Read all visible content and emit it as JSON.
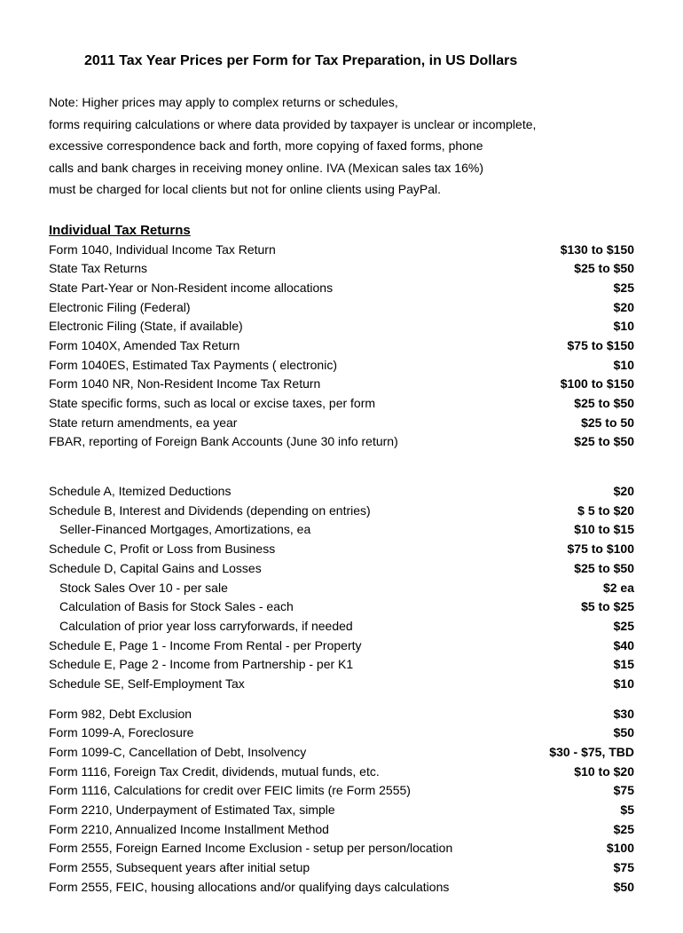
{
  "title": "2011 Tax Year Prices per Form for Tax Preparation, in US Dollars",
  "note_lines": [
    "Note:  Higher prices may apply to complex returns or schedules,",
    "forms requiring calculations or where data provided by taxpayer is unclear or incomplete,",
    "excessive correspondence back and forth, more copying of faxed forms, phone",
    "calls and bank charges in receiving money online. IVA (Mexican sales tax 16%)",
    "must be charged for local clients but not for online clients using PayPal."
  ],
  "section1_header": "Individual Tax Returns",
  "group1": [
    {
      "label": "Form 1040, Individual Income Tax Return",
      "price": "$130 to $150"
    },
    {
      "label": "State Tax Returns",
      "price": "$25 to $50"
    },
    {
      "label": "State Part-Year or Non-Resident income allocations",
      "price": "$25"
    },
    {
      "label": "Electronic Filing (Federal)",
      "price": "$20"
    },
    {
      "label": "Electronic Filing (State, if available)",
      "price": "$10"
    },
    {
      "label": "Form 1040X, Amended Tax Return",
      "price": "$75 to $150"
    },
    {
      "label": "Form 1040ES, Estimated Tax Payments ( electronic)",
      "price": "$10"
    },
    {
      "label": "Form 1040 NR, Non-Resident Income Tax Return",
      "price": "$100 to $150"
    },
    {
      "label": "State specific forms, such as local or excise taxes, per form",
      "price": "$25 to $50"
    },
    {
      "label": "State return amendments, ea year",
      "price": "$25 to 50"
    },
    {
      "label": "FBAR, reporting of Foreign Bank Accounts (June 30 info return)",
      "price": "$25 to $50"
    }
  ],
  "group2": [
    {
      "label": "Schedule A, Itemized Deductions",
      "price": "$20",
      "indent": false
    },
    {
      "label": "Schedule B, Interest and Dividends (depending on entries)",
      "price": "$ 5 to $20",
      "indent": false
    },
    {
      "label": "Seller-Financed Mortgages, Amortizations, ea",
      "price": "$10 to $15",
      "indent": true
    },
    {
      "label": "Schedule C, Profit or Loss from Business",
      "price": "$75 to $100",
      "indent": false
    },
    {
      "label": "Schedule D, Capital Gains and Losses",
      "price": "$25 to $50",
      "indent": false
    },
    {
      "label": "Stock Sales Over 10 - per sale",
      "price": "$2 ea",
      "indent": true
    },
    {
      "label": "Calculation of Basis for Stock Sales - each",
      "price": "$5 to $25",
      "indent": true
    },
    {
      "label": "Calculation of prior year loss carryforwards, if needed",
      "price": "$25",
      "indent": true
    },
    {
      "label": "Schedule E, Page 1 - Income From Rental - per Property",
      "price": "$40",
      "indent": false
    },
    {
      "label": "Schedule E, Page 2 - Income from Partnership - per K1",
      "price": "$15",
      "indent": false
    },
    {
      "label": "Schedule SE, Self-Employment Tax",
      "price": "$10",
      "indent": false
    }
  ],
  "group3": [
    {
      "label": "Form 982, Debt Exclusion",
      "price": "$30"
    },
    {
      "label": "Form 1099-A, Foreclosure",
      "price": "$50"
    },
    {
      "label": "Form 1099-C, Cancellation of Debt, Insolvency",
      "price": "$30 - $75, TBD"
    },
    {
      "label": "Form 1116, Foreign Tax Credit, dividends, mutual funds, etc.",
      "price": "$10 to $20"
    },
    {
      "label": "Form 1116, Calculations for credit over FEIC limits (re Form 2555)",
      "price": "$75"
    },
    {
      "label": "Form 2210, Underpayment of Estimated Tax, simple",
      "price": "$5"
    },
    {
      "label": "Form 2210, Annualized Income Installment Method",
      "price": "$25"
    },
    {
      "label": "Form 2555, Foreign Earned Income Exclusion - setup per person/location",
      "price": "$100"
    },
    {
      "label": "Form 2555, Subsequent years after initial setup",
      "price": "$75"
    },
    {
      "label": "Form 2555, FEIC, housing allocations and/or qualifying days calculations",
      "price": "$50"
    }
  ]
}
